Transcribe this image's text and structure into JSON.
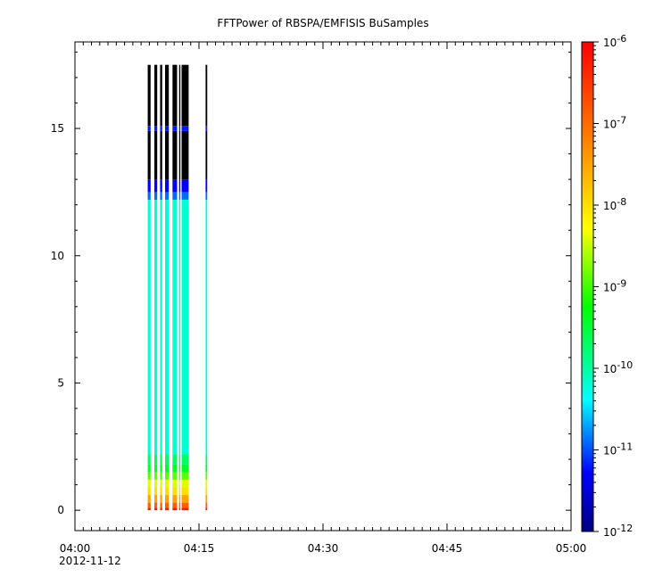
{
  "chart_data": {
    "type": "heatmap",
    "title": "FFTPower of RBSPA/EMFISIS  BuSamples",
    "xlabel": "",
    "ylabel": "",
    "x_axis": {
      "range_minutes": [
        0,
        60
      ],
      "ticks": [
        {
          "minutes": 0,
          "label": "04:00"
        },
        {
          "minutes": 15,
          "label": "04:15"
        },
        {
          "minutes": 30,
          "label": "04:30"
        },
        {
          "minutes": 45,
          "label": "04:45"
        },
        {
          "minutes": 60,
          "label": "05:00"
        }
      ],
      "date_label": "2012-11-12"
    },
    "y_axis": {
      "range": [
        -0.8,
        18.4
      ],
      "ticks": [
        0,
        5,
        10,
        15
      ]
    },
    "colorbar": {
      "scale": "log",
      "range_exponents": [
        -12,
        -6
      ],
      "ticks": [
        {
          "exp": -6,
          "base": "10",
          "sup": "-6"
        },
        {
          "exp": -7,
          "base": "10",
          "sup": "-7"
        },
        {
          "exp": -8,
          "base": "10",
          "sup": "-8"
        },
        {
          "exp": -9,
          "base": "10",
          "sup": "-9"
        },
        {
          "exp": -10,
          "base": "10",
          "sup": "-10"
        },
        {
          "exp": -11,
          "base": "10",
          "sup": "-11"
        },
        {
          "exp": -12,
          "base": "10",
          "sup": "-12"
        }
      ]
    },
    "data_columns": [
      {
        "t_start": 8.8,
        "t_end": 9.15
      },
      {
        "t_start": 9.6,
        "t_end": 9.95
      },
      {
        "t_start": 10.3,
        "t_end": 10.55
      },
      {
        "t_start": 10.9,
        "t_end": 11.35
      },
      {
        "t_start": 11.8,
        "t_end": 12.35
      },
      {
        "t_start": 12.6,
        "t_end": 12.75
      },
      {
        "t_start": 12.9,
        "t_end": 13.75
      },
      {
        "t_start": 15.8,
        "t_end": 16.0
      }
    ],
    "spectrum_profile": [
      {
        "y_from": 0.0,
        "y_to": 0.1,
        "log_power": -6.2
      },
      {
        "y_from": 0.1,
        "y_to": 0.3,
        "log_power": -6.9
      },
      {
        "y_from": 0.3,
        "y_to": 0.6,
        "log_power": -7.5
      },
      {
        "y_from": 0.6,
        "y_to": 0.9,
        "log_power": -8.0
      },
      {
        "y_from": 0.9,
        "y_to": 1.2,
        "log_power": -8.4
      },
      {
        "y_from": 1.2,
        "y_to": 1.5,
        "log_power": -8.9
      },
      {
        "y_from": 1.5,
        "y_to": 1.8,
        "log_power": -9.4
      },
      {
        "y_from": 1.8,
        "y_to": 2.2,
        "log_power": -9.7
      },
      {
        "y_from": 2.2,
        "y_to": 12.2,
        "log_power": -10.2
      },
      {
        "y_from": 12.2,
        "y_to": 12.5,
        "log_power": -10.9
      },
      {
        "y_from": 12.5,
        "y_to": 13.0,
        "log_power": -11.3
      },
      {
        "y_from": 13.0,
        "y_to": 14.9,
        "log_power": -11.9
      },
      {
        "y_from": 14.9,
        "y_to": 15.1,
        "log_power": -11.2
      },
      {
        "y_from": 15.1,
        "y_to": 17.5,
        "log_power": -12.0
      }
    ]
  }
}
